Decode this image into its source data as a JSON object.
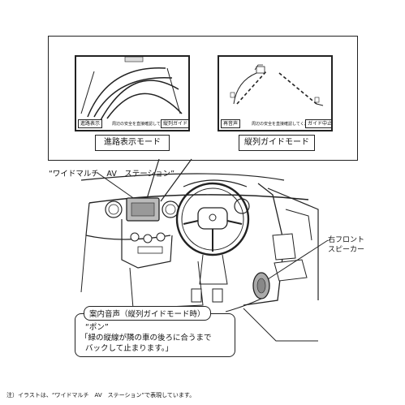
{
  "top_panel": {
    "left_screen": {
      "button_left": "進路表示",
      "message": "周辺の安全を直接確認してください",
      "button_right": "縦列ガイド"
    },
    "left_caption": "進路表示モード",
    "right_screen": {
      "button_left": "再音声",
      "message": "周辺の安全を直接確認してください",
      "button_right": "ガイド中止"
    },
    "right_caption": "縦列ガイドモード"
  },
  "system_label": "“ワイドマルチ　AV　ステーション”",
  "speaker_label_line1": "右フロント",
  "speaker_label_line2": "スピーカー",
  "callout": {
    "title": "案内音声（縦列ガイドモード時）",
    "line1": "“ポン”",
    "line2": "「緑の縦線が隣の車の後ろに合うまで",
    "line3": "バックして止まります。」"
  },
  "footnote": "注）イラストは、“ワイドマルチ　AV　ステーション”で表現しています。"
}
